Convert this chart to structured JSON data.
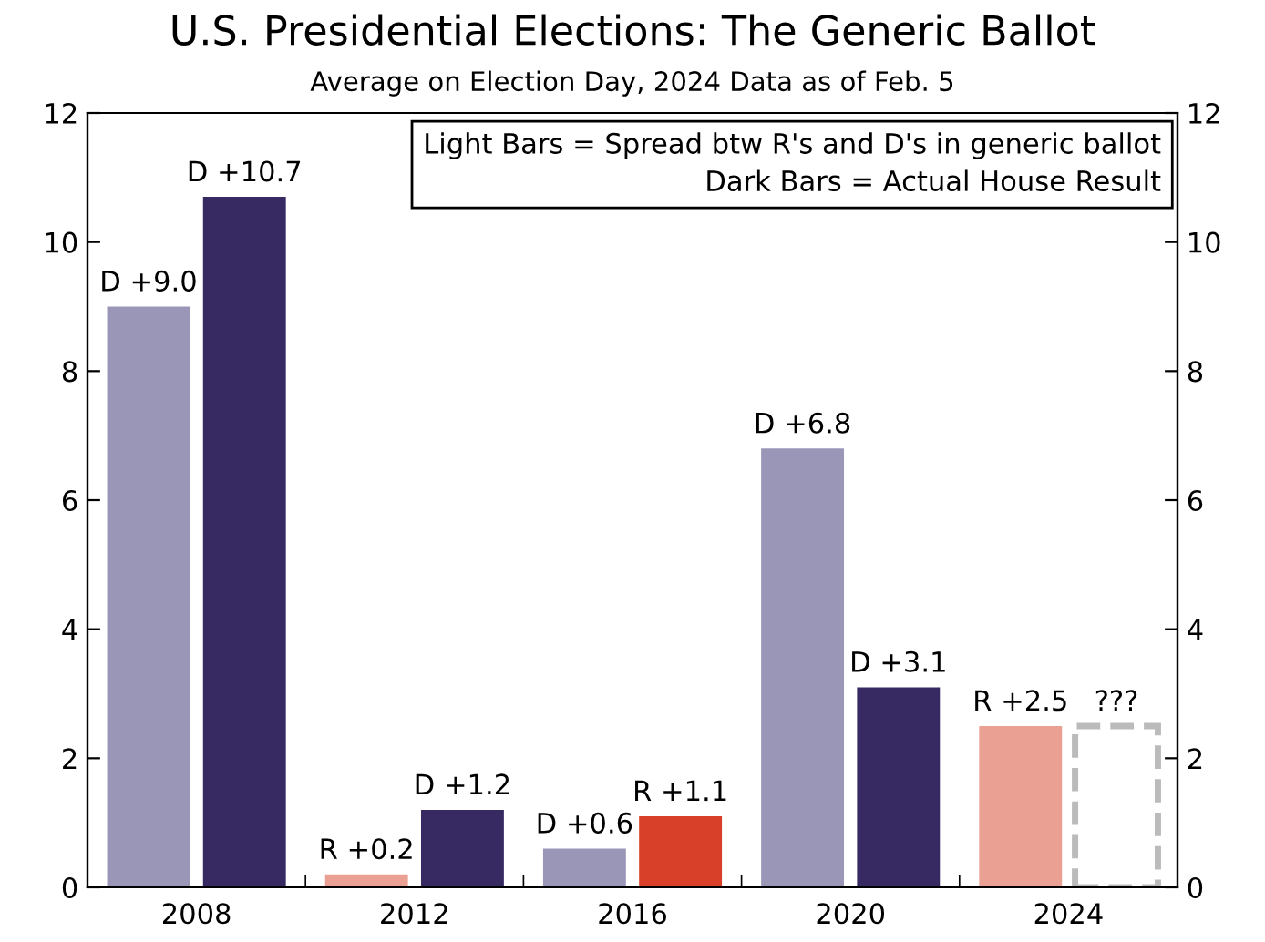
{
  "chart_data": {
    "type": "bar",
    "title": "U.S. Presidential Elections: The Generic Ballot",
    "subtitle": "Average on Election Day, 2024 Data as of Feb. 5",
    "categories": [
      "2008",
      "2012",
      "2016",
      "2020",
      "2024"
    ],
    "series": [
      {
        "colors": [
          "#9a96b8",
          "#eaa092",
          "#9a96b8",
          "#9a96b8",
          "#eaa092"
        ],
        "values": [
          9.0,
          0.2,
          0.6,
          6.8,
          2.5
        ],
        "value_labels": [
          "D +9.0",
          "R +0.2",
          "D +0.6",
          "D +6.8",
          "R +2.5"
        ]
      },
      {
        "colors": [
          "#372a63",
          "#372a63",
          "#d9402a",
          "#372a63",
          "#ffffff"
        ],
        "values": [
          10.7,
          1.2,
          1.1,
          3.1,
          2.5
        ],
        "value_labels": [
          "D +10.7",
          "D +1.2",
          "R +1.1",
          "D +3.1",
          "???"
        ]
      }
    ],
    "annotations": [
      "Light Bars = Spread btw R's and D's in generic ballot",
      "Dark Bars = Actual House Result"
    ],
    "ylim": [
      0,
      12
    ],
    "yticks": [
      0,
      2,
      4,
      6,
      8,
      10,
      12
    ],
    "y2lim": [
      0,
      12
    ],
    "y2ticks": [
      0,
      2,
      4,
      6,
      8,
      10,
      12
    ],
    "grid": false,
    "legend": false
  }
}
